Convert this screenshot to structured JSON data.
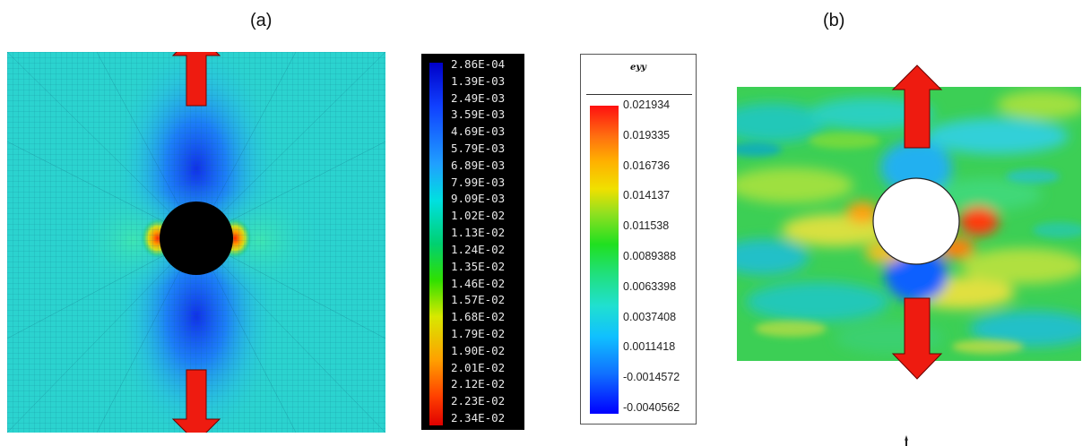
{
  "panels": {
    "a_label": "(a)",
    "b_label": "(b)"
  },
  "legend_a": {
    "ticks": [
      "2.86E-04",
      "1.39E-03",
      "2.49E-03",
      "3.59E-03",
      "4.69E-03",
      "5.79E-03",
      "6.89E-03",
      "7.99E-03",
      "9.09E-03",
      "1.02E-02",
      "1.13E-02",
      "1.24E-02",
      "1.35E-02",
      "1.46E-02",
      "1.57E-02",
      "1.68E-02",
      "1.79E-02",
      "1.90E-02",
      "2.01E-02",
      "2.12E-02",
      "2.23E-02",
      "2.34E-02"
    ]
  },
  "legend_b": {
    "title": "eyy",
    "ticks": [
      "0.021934",
      "0.019335",
      "0.016736",
      "0.014137",
      "0.011538",
      "0.0089388",
      "0.0063398",
      "0.0037408",
      "0.0011418",
      "-0.0014572",
      "-0.0040562"
    ]
  },
  "colors": {
    "arrow": "#ee1b10",
    "arrow_stroke": "#6a0000",
    "mesh_base": "#2bd3cf",
    "hole_fill": "#000000"
  }
}
